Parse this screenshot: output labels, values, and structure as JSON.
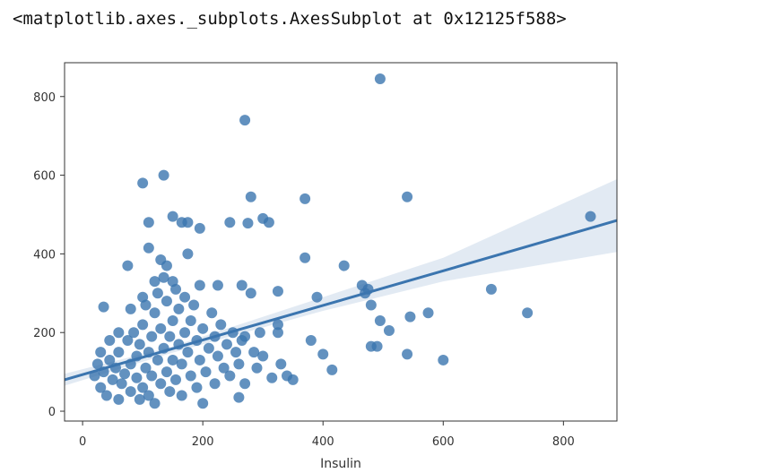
{
  "cell_output": "<matplotlib.axes._subplots.AxesSubplot at 0x12125f588>",
  "chart_data": {
    "type": "scatter",
    "xlabel": "Insulin",
    "xlim": [
      -30,
      889
    ],
    "ylim": [
      -25,
      886
    ],
    "xticks": [
      0,
      200,
      400,
      600,
      800
    ],
    "yticks": [
      0,
      200,
      400,
      600,
      800
    ],
    "color": "#3b75af",
    "x": [
      495,
      270,
      135,
      100,
      540,
      280,
      370,
      150,
      300,
      310,
      245,
      275,
      165,
      175,
      110,
      195,
      845,
      110,
      175,
      130,
      370,
      435,
      75,
      680,
      475,
      470,
      465,
      390,
      280,
      325,
      265,
      225,
      740,
      575,
      545,
      495,
      510,
      480,
      380,
      400,
      415,
      540,
      600,
      480,
      490,
      350,
      325,
      325,
      330,
      340,
      315,
      270,
      260,
      200,
      35,
      20,
      25,
      30,
      35,
      40,
      45,
      50,
      55,
      60,
      60,
      65,
      70,
      75,
      80,
      80,
      85,
      90,
      90,
      95,
      95,
      100,
      100,
      105,
      105,
      110,
      110,
      115,
      115,
      120,
      120,
      125,
      125,
      130,
      130,
      135,
      135,
      140,
      140,
      145,
      145,
      150,
      150,
      155,
      155,
      160,
      160,
      165,
      165,
      170,
      170,
      175,
      180,
      180,
      185,
      190,
      190,
      195,
      200,
      205,
      210,
      215,
      220,
      220,
      225,
      230,
      235,
      240,
      245,
      250,
      255,
      260,
      265,
      270,
      285,
      290,
      295,
      300,
      195,
      150,
      140,
      100,
      80,
      60,
      45,
      30,
      120
    ],
    "values": [
      845,
      740,
      600,
      580,
      545,
      545,
      540,
      495,
      490,
      480,
      480,
      478,
      480,
      480,
      480,
      465,
      495,
      415,
      400,
      385,
      390,
      370,
      370,
      310,
      310,
      300,
      320,
      290,
      300,
      305,
      320,
      320,
      250,
      250,
      240,
      230,
      205,
      270,
      180,
      145,
      105,
      145,
      130,
      165,
      165,
      80,
      220,
      200,
      120,
      90,
      85,
      70,
      35,
      20,
      265,
      90,
      120,
      60,
      100,
      40,
      130,
      80,
      110,
      30,
      150,
      70,
      95,
      180,
      50,
      120,
      200,
      85,
      140,
      30,
      170,
      60,
      220,
      110,
      270,
      40,
      150,
      190,
      90,
      250,
      20,
      130,
      300,
      70,
      210,
      160,
      340,
      100,
      280,
      50,
      190,
      230,
      130,
      80,
      310,
      170,
      260,
      120,
      40,
      200,
      290,
      150,
      90,
      230,
      270,
      60,
      180,
      130,
      210,
      100,
      160,
      250,
      70,
      190,
      140,
      220,
      110,
      170,
      90,
      200,
      150,
      120,
      180,
      190,
      150,
      110,
      200,
      140,
      320,
      330,
      370,
      290,
      260,
      200,
      180,
      150,
      330
    ],
    "regression": {
      "color": "#3b75af",
      "x": [
        -30,
        150,
        400,
        600,
        889
      ],
      "values": [
        80,
        159,
        269,
        357,
        485
      ],
      "ci_lower": [
        65,
        149,
        255,
        330,
        405
      ],
      "ci_upper": [
        95,
        165,
        290,
        390,
        590
      ]
    }
  }
}
